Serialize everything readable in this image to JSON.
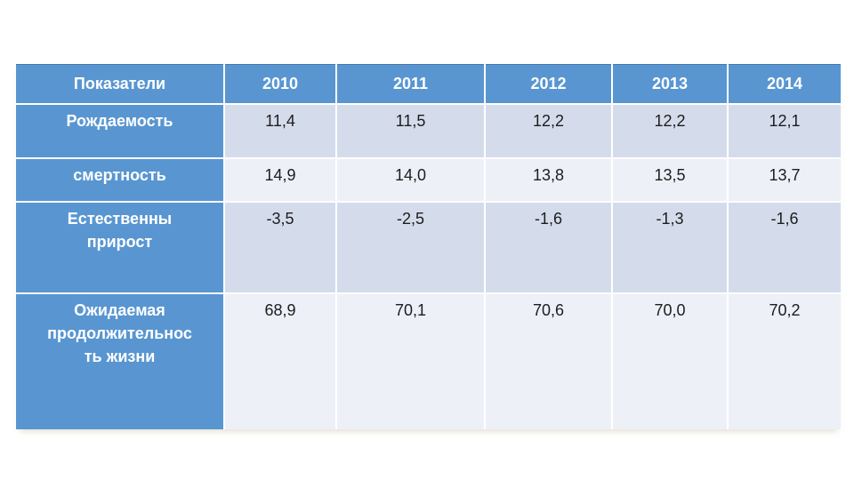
{
  "table": {
    "columns": [
      "Показатели",
      "2010",
      "2011",
      "2012",
      "2013",
      "2014"
    ],
    "rows": [
      {
        "label": "Рождаемость",
        "values": [
          "11,4",
          "11,5",
          "12,2",
          "12,2",
          "12,1"
        ]
      },
      {
        "label": "смертность",
        "values": [
          "14,9",
          "14,0",
          "13,8",
          "13,5",
          "13,7"
        ]
      },
      {
        "label": "Естественны\nприрост",
        "values": [
          "-3,5",
          "-2,5",
          "-1,6",
          "-1,3",
          "-1,6"
        ]
      },
      {
        "label": "Ожидаемая\nпродолжительнос\nть жизни",
        "values": [
          "68,9",
          "70,1",
          "70,6",
          "70,0",
          "70,2"
        ]
      }
    ],
    "colors": {
      "accent": "#5996d1",
      "band_dark": "#d4dcec",
      "band_light": "#edf0f7",
      "page_bg": "#ffffff",
      "header_text": "#ffffff",
      "data_text": "#1d1d1d"
    }
  },
  "chart_data": {
    "type": "table",
    "title": "",
    "columns": [
      "Показатели",
      "2010",
      "2011",
      "2012",
      "2013",
      "2014"
    ],
    "categories": [
      "2010",
      "2011",
      "2012",
      "2013",
      "2014"
    ],
    "series": [
      {
        "name": "Рождаемость",
        "values": [
          11.4,
          11.5,
          12.2,
          12.2,
          12.1
        ]
      },
      {
        "name": "смертность",
        "values": [
          14.9,
          14.0,
          13.8,
          13.5,
          13.7
        ]
      },
      {
        "name": "Естественный прирост",
        "values": [
          -3.5,
          -2.5,
          -1.6,
          -1.3,
          -1.6
        ]
      },
      {
        "name": "Ожидаемая продолжительность жизни",
        "values": [
          68.9,
          70.1,
          70.6,
          70.0,
          70.2
        ]
      }
    ],
    "layout": {
      "header_row": "accent-filled, white bold text, centered",
      "first_column": "accent-filled, white bold text, top-aligned",
      "banding": "rows alternate light-periwinkle and near-white",
      "gridlines": "white 2px gaps between cells"
    }
  }
}
